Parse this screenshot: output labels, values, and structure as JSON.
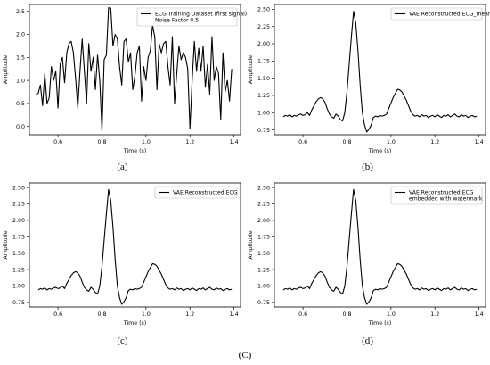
{
  "figure_label": "(C)",
  "chart_data": [
    {
      "type": "line",
      "caption": "(a)",
      "xlabel": "Time (s)",
      "ylabel": "Amplitude",
      "xlim": [
        0.47,
        1.43
      ],
      "ylim": [
        -0.18,
        2.65
      ],
      "xticks": [
        0.6,
        0.8,
        1.0,
        1.2,
        1.4
      ],
      "xtick_labels": [
        "0.6",
        "0.8",
        "1.0",
        "1.2",
        "1.4"
      ],
      "yticks": [
        0.0,
        0.5,
        1.0,
        1.5,
        2.0,
        2.5
      ],
      "ytick_labels": [
        "0.0",
        "0.5",
        "1.0",
        "1.5",
        "2.0",
        "2.5"
      ],
      "legend": [
        "ECG Training Dataset (first signal)",
        "Noise Factor 0.5"
      ],
      "legend_position": "top-right",
      "series": [
        {
          "x": [
            0.5,
            0.51,
            0.52,
            0.53,
            0.54,
            0.55,
            0.56,
            0.57,
            0.58,
            0.59,
            0.6,
            0.61,
            0.62,
            0.63,
            0.64,
            0.65,
            0.66,
            0.67,
            0.68,
            0.69,
            0.7,
            0.71,
            0.72,
            0.73,
            0.74,
            0.75,
            0.76,
            0.77,
            0.78,
            0.79,
            0.8,
            0.81,
            0.82,
            0.83,
            0.84,
            0.85,
            0.86,
            0.87,
            0.88,
            0.89,
            0.9,
            0.91,
            0.92,
            0.93,
            0.94,
            0.95,
            0.96,
            0.97,
            0.98,
            0.99,
            1.0,
            1.01,
            1.02,
            1.03,
            1.04,
            1.05,
            1.06,
            1.07,
            1.08,
            1.09,
            1.1,
            1.11,
            1.12,
            1.13,
            1.14,
            1.15,
            1.16,
            1.17,
            1.18,
            1.19,
            1.2,
            1.21,
            1.22,
            1.23,
            1.24,
            1.25,
            1.26,
            1.27,
            1.28,
            1.29,
            1.3,
            1.31,
            1.32,
            1.33,
            1.34,
            1.35,
            1.36,
            1.37,
            1.38,
            1.39
          ],
          "y": [
            0.7,
            0.72,
            0.9,
            0.45,
            1.15,
            0.5,
            0.62,
            1.3,
            1.0,
            1.2,
            0.4,
            1.35,
            1.5,
            0.95,
            1.6,
            1.8,
            1.85,
            1.6,
            1.05,
            0.4,
            1.2,
            1.9,
            1.2,
            0.5,
            1.8,
            1.2,
            1.5,
            0.8,
            1.55,
            1.0,
            -0.1,
            1.45,
            1.55,
            2.58,
            2.57,
            1.75,
            2.0,
            1.9,
            1.3,
            0.9,
            1.85,
            1.9,
            1.4,
            1.6,
            0.8,
            1.1,
            1.6,
            1.75,
            0.55,
            1.3,
            1.0,
            1.5,
            1.65,
            2.2,
            1.95,
            0.8,
            1.8,
            1.6,
            1.8,
            1.85,
            1.3,
            0.9,
            1.95,
            0.5,
            1.15,
            1.75,
            1.45,
            1.6,
            1.5,
            1.25,
            -0.05,
            1.0,
            1.85,
            1.2,
            1.7,
            1.2,
            1.75,
            0.85,
            1.35,
            0.7,
            1.95,
            1.0,
            1.3,
            1.15,
            0.15,
            1.6,
            0.75,
            1.0,
            0.55,
            1.25
          ]
        }
      ]
    },
    {
      "type": "line",
      "caption": "(b)",
      "xlabel": "Time (s)",
      "ylabel": "Amplitude",
      "xlim": [
        0.47,
        1.43
      ],
      "ylim": [
        0.68,
        2.57
      ],
      "xticks": [
        0.6,
        0.8,
        1.0,
        1.2,
        1.4
      ],
      "xtick_labels": [
        "0.6",
        "0.8",
        "1.0",
        "1.2",
        "1.4"
      ],
      "yticks": [
        0.75,
        1.0,
        1.25,
        1.5,
        1.75,
        2.0,
        2.25,
        2.5
      ],
      "ytick_labels": [
        "0.75",
        "1.00",
        "1.25",
        "1.50",
        "1.75",
        "2.00",
        "2.25",
        "2.50"
      ],
      "legend": [
        "VAE Reconstructed ECG_mean"
      ],
      "legend_position": "top-right",
      "series": [
        {
          "x": [
            0.51,
            0.52,
            0.53,
            0.54,
            0.55,
            0.56,
            0.57,
            0.58,
            0.59,
            0.6,
            0.61,
            0.62,
            0.63,
            0.64,
            0.65,
            0.66,
            0.67,
            0.68,
            0.69,
            0.7,
            0.71,
            0.72,
            0.73,
            0.74,
            0.75,
            0.76,
            0.77,
            0.78,
            0.79,
            0.8,
            0.81,
            0.82,
            0.83,
            0.84,
            0.85,
            0.86,
            0.87,
            0.88,
            0.89,
            0.9,
            0.91,
            0.92,
            0.93,
            0.94,
            0.95,
            0.96,
            0.97,
            0.98,
            0.99,
            1.0,
            1.01,
            1.02,
            1.03,
            1.04,
            1.05,
            1.06,
            1.07,
            1.08,
            1.09,
            1.1,
            1.11,
            1.12,
            1.13,
            1.14,
            1.15,
            1.16,
            1.17,
            1.18,
            1.19,
            1.2,
            1.21,
            1.22,
            1.23,
            1.24,
            1.25,
            1.26,
            1.27,
            1.28,
            1.29,
            1.3,
            1.31,
            1.32,
            1.33,
            1.34,
            1.35,
            1.36,
            1.37,
            1.38,
            1.39
          ],
          "y": [
            0.94,
            0.96,
            0.95,
            0.97,
            0.94,
            0.96,
            0.95,
            0.97,
            0.98,
            0.96,
            0.97,
            1.0,
            0.96,
            1.04,
            1.1,
            1.16,
            1.2,
            1.22,
            1.2,
            1.15,
            1.06,
            0.98,
            0.94,
            0.92,
            0.98,
            0.95,
            0.9,
            0.88,
            1.0,
            1.3,
            1.7,
            2.1,
            2.47,
            2.3,
            1.9,
            1.4,
            1.0,
            0.82,
            0.72,
            0.76,
            0.82,
            0.93,
            0.95,
            0.94,
            0.96,
            0.95,
            0.96,
            0.98,
            1.06,
            1.14,
            1.22,
            1.28,
            1.34,
            1.33,
            1.3,
            1.24,
            1.18,
            1.1,
            1.02,
            0.97,
            0.95,
            0.96,
            0.94,
            0.97,
            0.95,
            0.96,
            0.93,
            0.95,
            0.96,
            0.94,
            0.97,
            0.95,
            0.93,
            0.96,
            0.95,
            0.97,
            0.94,
            0.96,
            0.98,
            0.95,
            0.94,
            0.97,
            0.95,
            0.96,
            0.93,
            0.95,
            0.96,
            0.94,
            0.95
          ]
        }
      ]
    },
    {
      "type": "line",
      "caption": "(c)",
      "xlabel": "Time (s)",
      "ylabel": "Amplitude",
      "xlim": [
        0.47,
        1.43
      ],
      "ylim": [
        0.68,
        2.57
      ],
      "xticks": [
        0.6,
        0.8,
        1.0,
        1.2,
        1.4
      ],
      "xtick_labels": [
        "0.6",
        "0.8",
        "1.0",
        "1.2",
        "1.4"
      ],
      "yticks": [
        0.75,
        1.0,
        1.25,
        1.5,
        1.75,
        2.0,
        2.25,
        2.5
      ],
      "ytick_labels": [
        "0.75",
        "1.00",
        "1.25",
        "1.50",
        "1.75",
        "2.00",
        "2.25",
        "2.50"
      ],
      "legend": [
        "VAE Reconstructed ECG"
      ],
      "legend_position": "top-right",
      "series": [
        {
          "x": [
            0.51,
            0.52,
            0.53,
            0.54,
            0.55,
            0.56,
            0.57,
            0.58,
            0.59,
            0.6,
            0.61,
            0.62,
            0.63,
            0.64,
            0.65,
            0.66,
            0.67,
            0.68,
            0.69,
            0.7,
            0.71,
            0.72,
            0.73,
            0.74,
            0.75,
            0.76,
            0.77,
            0.78,
            0.79,
            0.8,
            0.81,
            0.82,
            0.83,
            0.84,
            0.85,
            0.86,
            0.87,
            0.88,
            0.89,
            0.9,
            0.91,
            0.92,
            0.93,
            0.94,
            0.95,
            0.96,
            0.97,
            0.98,
            0.99,
            1.0,
            1.01,
            1.02,
            1.03,
            1.04,
            1.05,
            1.06,
            1.07,
            1.08,
            1.09,
            1.1,
            1.11,
            1.12,
            1.13,
            1.14,
            1.15,
            1.16,
            1.17,
            1.18,
            1.19,
            1.2,
            1.21,
            1.22,
            1.23,
            1.24,
            1.25,
            1.26,
            1.27,
            1.28,
            1.29,
            1.3,
            1.31,
            1.32,
            1.33,
            1.34,
            1.35,
            1.36,
            1.37,
            1.38,
            1.39
          ],
          "y": [
            0.94,
            0.96,
            0.95,
            0.97,
            0.94,
            0.96,
            0.95,
            0.97,
            0.98,
            0.96,
            0.97,
            1.0,
            0.96,
            1.04,
            1.1,
            1.16,
            1.2,
            1.22,
            1.2,
            1.15,
            1.06,
            0.98,
            0.94,
            0.92,
            0.98,
            0.95,
            0.9,
            0.88,
            1.0,
            1.3,
            1.7,
            2.1,
            2.47,
            2.3,
            1.9,
            1.4,
            1.0,
            0.82,
            0.72,
            0.76,
            0.82,
            0.93,
            0.95,
            0.94,
            0.96,
            0.95,
            0.96,
            0.98,
            1.06,
            1.14,
            1.22,
            1.28,
            1.34,
            1.33,
            1.3,
            1.24,
            1.18,
            1.1,
            1.02,
            0.97,
            0.95,
            0.96,
            0.94,
            0.97,
            0.95,
            0.96,
            0.93,
            0.95,
            0.96,
            0.94,
            0.97,
            0.95,
            0.93,
            0.96,
            0.95,
            0.97,
            0.94,
            0.96,
            0.98,
            0.95,
            0.94,
            0.97,
            0.95,
            0.96,
            0.93,
            0.95,
            0.96,
            0.94,
            0.95
          ]
        }
      ]
    },
    {
      "type": "line",
      "caption": "(d)",
      "xlabel": "Time (s)",
      "ylabel": "Amplitude",
      "xlim": [
        0.47,
        1.43
      ],
      "ylim": [
        0.68,
        2.57
      ],
      "xticks": [
        0.6,
        0.8,
        1.0,
        1.2,
        1.4
      ],
      "xtick_labels": [
        "0.6",
        "0.8",
        "1.0",
        "1.2",
        "1.4"
      ],
      "yticks": [
        0.75,
        1.0,
        1.25,
        1.5,
        1.75,
        2.0,
        2.25,
        2.5
      ],
      "ytick_labels": [
        "0.75",
        "1.00",
        "1.25",
        "1.50",
        "1.75",
        "2.00",
        "2.25",
        "2.50"
      ],
      "legend": [
        "VAE Reconstructed ECG",
        "embedded with watermark"
      ],
      "legend_position": "top-right",
      "series": [
        {
          "x": [
            0.51,
            0.52,
            0.53,
            0.54,
            0.55,
            0.56,
            0.57,
            0.58,
            0.59,
            0.6,
            0.61,
            0.62,
            0.63,
            0.64,
            0.65,
            0.66,
            0.67,
            0.68,
            0.69,
            0.7,
            0.71,
            0.72,
            0.73,
            0.74,
            0.75,
            0.76,
            0.77,
            0.78,
            0.79,
            0.8,
            0.81,
            0.82,
            0.83,
            0.84,
            0.85,
            0.86,
            0.87,
            0.88,
            0.89,
            0.9,
            0.91,
            0.92,
            0.93,
            0.94,
            0.95,
            0.96,
            0.97,
            0.98,
            0.99,
            1.0,
            1.01,
            1.02,
            1.03,
            1.04,
            1.05,
            1.06,
            1.07,
            1.08,
            1.09,
            1.1,
            1.11,
            1.12,
            1.13,
            1.14,
            1.15,
            1.16,
            1.17,
            1.18,
            1.19,
            1.2,
            1.21,
            1.22,
            1.23,
            1.24,
            1.25,
            1.26,
            1.27,
            1.28,
            1.29,
            1.3,
            1.31,
            1.32,
            1.33,
            1.34,
            1.35,
            1.36,
            1.37,
            1.38,
            1.39
          ],
          "y": [
            0.94,
            0.96,
            0.95,
            0.97,
            0.94,
            0.96,
            0.95,
            0.97,
            0.98,
            0.96,
            0.97,
            1.0,
            0.96,
            1.04,
            1.1,
            1.16,
            1.2,
            1.22,
            1.2,
            1.15,
            1.06,
            0.98,
            0.94,
            0.92,
            0.98,
            0.95,
            0.9,
            0.88,
            1.0,
            1.3,
            1.7,
            2.1,
            2.47,
            2.3,
            1.9,
            1.4,
            1.0,
            0.82,
            0.72,
            0.76,
            0.82,
            0.93,
            0.95,
            0.94,
            0.96,
            0.95,
            0.96,
            0.98,
            1.06,
            1.14,
            1.22,
            1.28,
            1.34,
            1.33,
            1.3,
            1.24,
            1.18,
            1.1,
            1.02,
            0.97,
            0.95,
            0.96,
            0.94,
            0.97,
            0.95,
            0.96,
            0.93,
            0.95,
            0.96,
            0.94,
            0.97,
            0.95,
            0.93,
            0.96,
            0.95,
            0.97,
            0.94,
            0.96,
            0.98,
            0.95,
            0.94,
            0.97,
            0.95,
            0.96,
            0.93,
            0.95,
            0.96,
            0.94,
            0.95
          ]
        }
      ]
    }
  ]
}
